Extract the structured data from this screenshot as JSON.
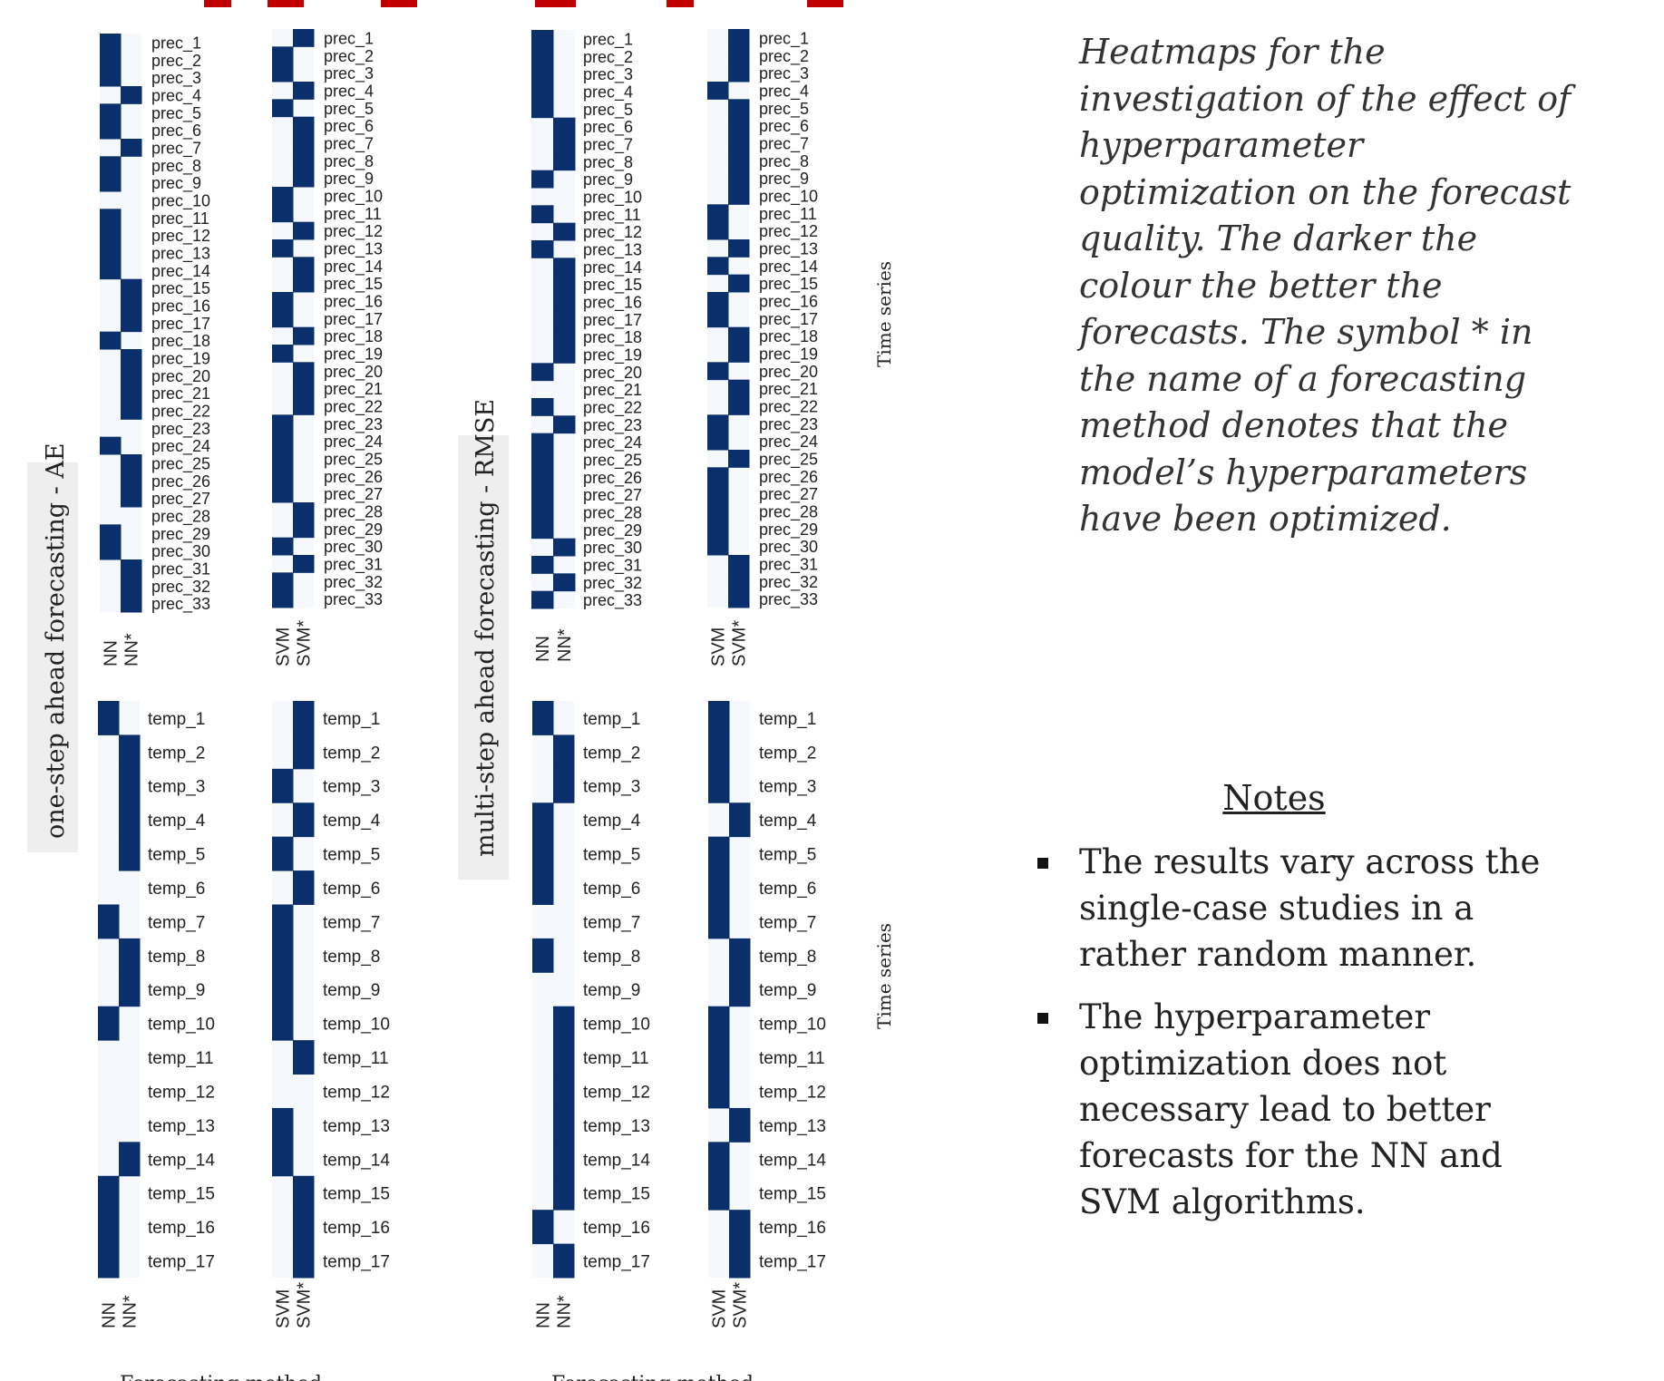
{
  "caption": "Heatmaps for the investigation of the effect of hyperparameter optimization on the forecast quality. The darker the colour the better the forecasts. The symbol * in the name of a forecasting method denotes that the model’s hyperparameters have been optimized.",
  "notes": {
    "title": "Notes",
    "items": [
      "The results vary across the single-case studies in a rather random manner.",
      "The hyperparameter optimization does not necessary lead to better forecasts for the NN and SVM algorithms."
    ]
  },
  "colors": {
    "dark": "#0a2f6b",
    "light": "#f5f9fe",
    "title_red": "#c00000",
    "band": "#eeeeee"
  },
  "chart_data": {
    "type": "heatmap",
    "sections": [
      {
        "label": "one-step ahead forecasting - AE",
        "xlabel": "Forecasting method"
      },
      {
        "label": "multi-step ahead forecasting - RMSE",
        "xlabel": "Forecasting method"
      }
    ],
    "ylabel": "Time series",
    "prec_labels": [
      "prec_1",
      "prec_2",
      "prec_3",
      "prec_4",
      "prec_5",
      "prec_6",
      "prec_7",
      "prec_8",
      "prec_9",
      "prec_10",
      "prec_11",
      "prec_12",
      "prec_13",
      "prec_14",
      "prec_15",
      "prec_16",
      "prec_17",
      "prec_18",
      "prec_19",
      "prec_20",
      "prec_21",
      "prec_22",
      "prec_23",
      "prec_24",
      "prec_25",
      "prec_26",
      "prec_27",
      "prec_28",
      "prec_29",
      "prec_30",
      "prec_31",
      "prec_32",
      "prec_33"
    ],
    "temp_labels": [
      "temp_1",
      "temp_2",
      "temp_3",
      "temp_4",
      "temp_5",
      "temp_6",
      "temp_7",
      "temp_8",
      "temp_9",
      "temp_10",
      "temp_11",
      "temp_12",
      "temp_13",
      "temp_14",
      "temp_15",
      "temp_16",
      "temp_17"
    ],
    "panels": [
      {
        "id": "ae_prec_nn",
        "methods": [
          "NN",
          "NN*"
        ],
        "cells": [
          "10",
          "10",
          "10",
          "01",
          "10",
          "10",
          "01",
          "10",
          "10",
          "00",
          "10",
          "10",
          "10",
          "10",
          "01",
          "01",
          "01",
          "10",
          "01",
          "01",
          "01",
          "01",
          "00",
          "10",
          "01",
          "01",
          "01",
          "00",
          "10",
          "10",
          "01",
          "01",
          "01"
        ]
      },
      {
        "id": "ae_prec_svm",
        "methods": [
          "SVM",
          "SVM*"
        ],
        "cells": [
          "01",
          "10",
          "10",
          "01",
          "10",
          "01",
          "01",
          "01",
          "01",
          "10",
          "10",
          "01",
          "10",
          "01",
          "01",
          "10",
          "10",
          "01",
          "10",
          "01",
          "01",
          "01",
          "10",
          "10",
          "10",
          "10",
          "10",
          "01",
          "01",
          "10",
          "01",
          "10",
          "10"
        ]
      },
      {
        "id": "rmse_prec_nn",
        "methods": [
          "NN",
          "NN*"
        ],
        "cells": [
          "10",
          "10",
          "10",
          "10",
          "10",
          "01",
          "01",
          "01",
          "10",
          "00",
          "10",
          "01",
          "10",
          "01",
          "01",
          "01",
          "01",
          "01",
          "01",
          "10",
          "00",
          "10",
          "01",
          "10",
          "10",
          "10",
          "10",
          "10",
          "10",
          "01",
          "10",
          "01",
          "10"
        ]
      },
      {
        "id": "rmse_prec_svm",
        "methods": [
          "SVM",
          "SVM*"
        ],
        "cells": [
          "01",
          "01",
          "01",
          "10",
          "01",
          "01",
          "01",
          "01",
          "01",
          "01",
          "10",
          "10",
          "01",
          "10",
          "01",
          "10",
          "10",
          "01",
          "01",
          "10",
          "01",
          "01",
          "10",
          "10",
          "01",
          "10",
          "10",
          "10",
          "10",
          "10",
          "01",
          "01",
          "01"
        ]
      },
      {
        "id": "ae_temp_nn",
        "methods": [
          "NN",
          "NN*"
        ],
        "cells": [
          "10",
          "01",
          "01",
          "01",
          "01",
          "00",
          "10",
          "01",
          "01",
          "10",
          "00",
          "00",
          "00",
          "01",
          "10",
          "10",
          "10"
        ]
      },
      {
        "id": "ae_temp_svm",
        "methods": [
          "SVM",
          "SVM*"
        ],
        "cells": [
          "01",
          "01",
          "10",
          "01",
          "10",
          "01",
          "10",
          "10",
          "10",
          "10",
          "01",
          "00",
          "10",
          "10",
          "01",
          "01",
          "01"
        ]
      },
      {
        "id": "rmse_temp_nn",
        "methods": [
          "NN",
          "NN*"
        ],
        "cells": [
          "10",
          "01",
          "01",
          "10",
          "10",
          "10",
          "00",
          "10",
          "00",
          "01",
          "01",
          "01",
          "01",
          "01",
          "01",
          "10",
          "01"
        ]
      },
      {
        "id": "rmse_temp_svm",
        "methods": [
          "SVM",
          "SVM*"
        ],
        "cells": [
          "10",
          "10",
          "10",
          "01",
          "10",
          "10",
          "10",
          "01",
          "01",
          "10",
          "10",
          "10",
          "01",
          "10",
          "10",
          "01",
          "01"
        ]
      }
    ]
  }
}
